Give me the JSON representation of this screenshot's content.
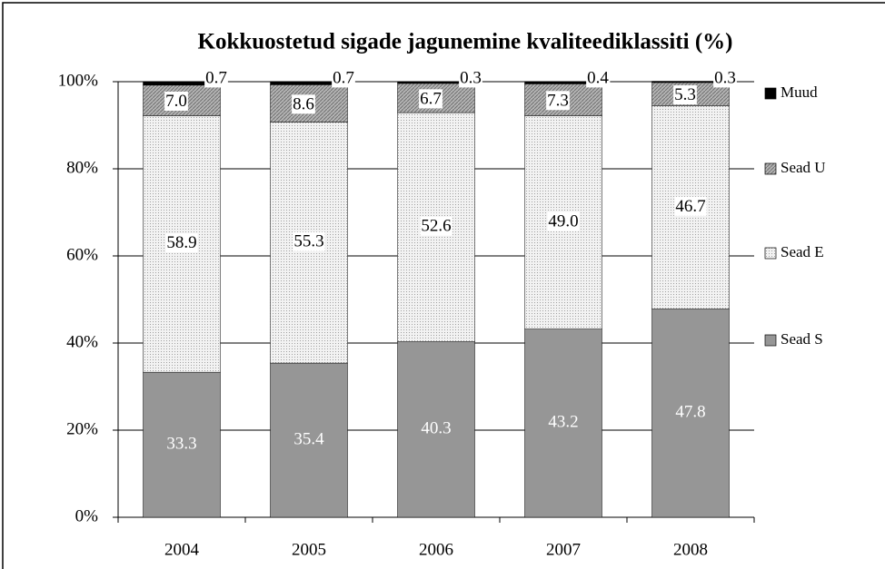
{
  "chart_data": {
    "type": "stacked-bar",
    "title": "Kokkuostetud sigade jagunemine kvaliteediklassiti (%)",
    "categories": [
      "2004",
      "2005",
      "2006",
      "2007",
      "2008"
    ],
    "series": [
      {
        "name": "Sead S",
        "color": "#969696",
        "values": [
          33.3,
          35.4,
          40.3,
          43.2,
          47.8
        ],
        "value_labels": [
          "33.3",
          "35.4",
          "40.3",
          "43.2",
          "47.8"
        ]
      },
      {
        "name": "Sead E",
        "color": "#f2f2f2",
        "values": [
          58.9,
          55.3,
          52.6,
          49.0,
          46.7
        ],
        "value_labels": [
          "58.9",
          "55.3",
          "52.6",
          "49.0",
          "46.7"
        ]
      },
      {
        "name": "Sead U",
        "color": "#b4b4b4",
        "values": [
          7.0,
          8.6,
          6.7,
          7.3,
          5.3
        ],
        "value_labels": [
          "7.0",
          "8.6",
          "6.7",
          "7.3",
          "5.3"
        ]
      },
      {
        "name": "Muud",
        "color": "#000000",
        "values": [
          0.7,
          0.7,
          0.3,
          0.4,
          0.3
        ],
        "value_labels": [
          "0.7",
          "0.7",
          "0.3",
          "0.4",
          "0.3"
        ]
      }
    ],
    "ylim": [
      0,
      100
    ],
    "yticks": [
      {
        "value": 0,
        "label": "0%"
      },
      {
        "value": 20,
        "label": "20%"
      },
      {
        "value": 40,
        "label": "40%"
      },
      {
        "value": 60,
        "label": "60%"
      },
      {
        "value": 80,
        "label": "80%"
      },
      {
        "value": 100,
        "label": "100%"
      }
    ],
    "grid": true,
    "legend": "right"
  }
}
